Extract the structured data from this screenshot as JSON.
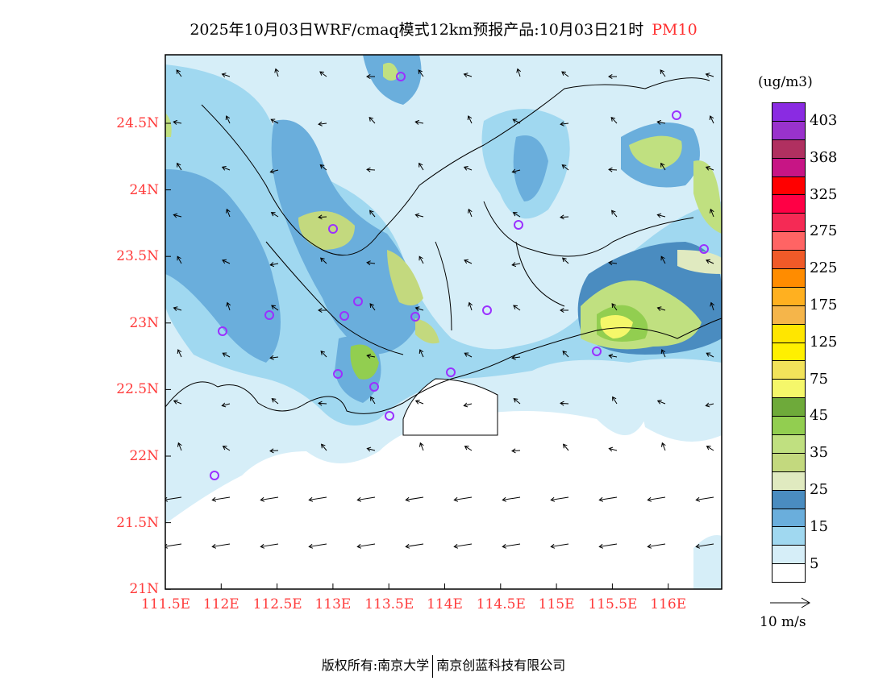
{
  "title": {
    "main": "2025年10月03日WRF/cmaq模式12km预报产品:10月03日21时",
    "pollutant": "PM10"
  },
  "axes": {
    "lat_labels": [
      "24.5N",
      "24N",
      "23.5N",
      "23N",
      "22.5N",
      "22N",
      "21.5N",
      "21N"
    ],
    "lon_labels": [
      "111.5E",
      "112E",
      "112.5E",
      "113E",
      "113.5E",
      "114E",
      "114.5E",
      "115E",
      "115.5E",
      "116E"
    ]
  },
  "colorbar": {
    "unit": "(ug/m3)",
    "labels": [
      "403",
      "368",
      "325",
      "275",
      "225",
      "175",
      "125",
      "75",
      "45",
      "35",
      "25",
      "15",
      "5"
    ],
    "colors": [
      "#8a2be2",
      "#9932cc",
      "#b03060",
      "#c71585",
      "#ff0000",
      "#ff0045",
      "#f52a55",
      "#ff6464",
      "#f05a28",
      "#ff8c00",
      "#ffb020",
      "#f5b54a",
      "#ffe600",
      "#fff000",
      "#f2e35a",
      "#f5f76a",
      "#6eaa3a",
      "#92ce50",
      "#c0e080",
      "#c3d97e",
      "#e0eac0",
      "#4a8cc0",
      "#6aaedc",
      "#a0d8f0",
      "#d6eef8",
      "#ffffff"
    ]
  },
  "wind_legend": "10 m/s",
  "footer": {
    "left": "版权所有:南京大学",
    "right": "南京创蓝科技有限公司"
  }
}
